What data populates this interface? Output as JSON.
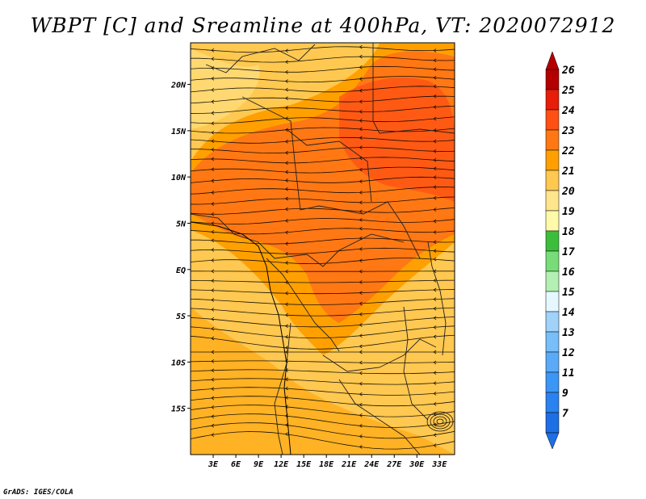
{
  "title": "WBPT [C] and Sreamline at 400hPa, VT: 2020072912",
  "credit": "GrADS: IGES/COLA",
  "map": {
    "lon_ticks": [
      "3E",
      "6E",
      "9E",
      "12E",
      "15E",
      "18E",
      "21E",
      "24E",
      "27E",
      "30E",
      "33E"
    ],
    "lat_ticks": [
      "20N",
      "15N",
      "10N",
      "5N",
      "EQ",
      "5S",
      "10S",
      "15S"
    ],
    "lon_values": [
      3,
      6,
      9,
      12,
      15,
      18,
      21,
      24,
      27,
      30,
      33
    ],
    "lat_values": [
      20,
      15,
      10,
      5,
      0,
      -5,
      -10,
      -15
    ],
    "lon_range": [
      0,
      35
    ],
    "lat_range": [
      -20,
      24.5
    ],
    "field": "WBPT",
    "unit": "C",
    "level": "400hPa",
    "valid_time": "2020072912",
    "fill_levels": [
      20,
      21,
      22,
      23,
      24
    ]
  },
  "colorbar": {
    "labels": [
      "7",
      "9",
      "11",
      "12",
      "13",
      "14",
      "15",
      "16",
      "17",
      "18",
      "19",
      "20",
      "21",
      "22",
      "23",
      "24",
      "25",
      "26"
    ],
    "colors": [
      "#1e6ee6",
      "#2a82f0",
      "#3c96f5",
      "#5aaaf8",
      "#78bef8",
      "#a0d2fa",
      "#e6f8ff",
      "#b4f0b4",
      "#78dc78",
      "#3cbe3c",
      "#fffaaa",
      "#ffe68c",
      "#ffc850",
      "#ffa000",
      "#ff7814",
      "#ff5014",
      "#e61e0a",
      "#b40000"
    ]
  }
}
